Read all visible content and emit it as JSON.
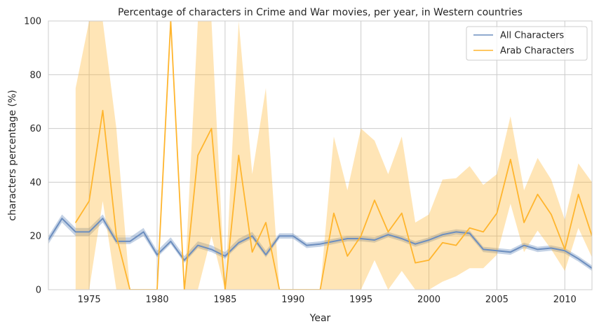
{
  "chart_data": {
    "type": "line",
    "title": "Percentage of characters in Crime and War movies, per year, in Western countries",
    "xlabel": "Year",
    "ylabel": "characters percentage (%)",
    "xlim": [
      1972,
      2012
    ],
    "ylim": [
      0,
      100
    ],
    "xticks": [
      1975,
      1980,
      1985,
      1990,
      1995,
      2000,
      2005,
      2010
    ],
    "yticks": [
      0,
      20,
      40,
      60,
      80,
      100
    ],
    "grid": true,
    "legend_position": "top-right",
    "series": [
      {
        "name": "All Characters",
        "color": "#6c8ebf",
        "x": [
          1972,
          1973,
          1974,
          1975,
          1976,
          1977,
          1978,
          1979,
          1980,
          1981,
          1982,
          1983,
          1984,
          1985,
          1986,
          1987,
          1988,
          1989,
          1990,
          1991,
          1992,
          1993,
          1994,
          1995,
          1996,
          1997,
          1998,
          1999,
          2000,
          2001,
          2002,
          2003,
          2004,
          2005,
          2006,
          2007,
          2008,
          2009,
          2010,
          2011,
          2012
        ],
        "y": [
          18.5,
          26.5,
          21.5,
          21.5,
          26.5,
          18,
          18,
          21.5,
          13,
          18,
          11,
          16.5,
          15,
          12.5,
          17.5,
          20,
          13,
          20,
          20,
          16.5,
          17,
          18,
          19,
          19,
          18.5,
          20.5,
          19,
          17,
          18.5,
          20.5,
          21.5,
          21,
          15,
          14.5,
          14,
          16.5,
          15,
          15.5,
          14.5,
          11.5,
          8
        ],
        "ci_low": [
          17,
          25,
          20,
          20,
          25,
          17,
          17,
          20,
          12,
          17,
          10,
          15.5,
          14,
          11.5,
          16.5,
          19,
          12,
          19,
          19,
          15.5,
          16,
          17,
          18,
          18,
          17.5,
          19.5,
          18,
          16,
          17.5,
          19.5,
          20.5,
          20,
          14,
          13.5,
          13,
          15.5,
          14,
          14.5,
          13.5,
          10.5,
          7
        ],
        "ci_high": [
          20,
          28,
          23,
          23,
          28,
          19.5,
          19.5,
          23,
          14.5,
          19.5,
          12.5,
          18,
          16.5,
          14,
          19,
          21.5,
          14.5,
          21,
          21,
          17.5,
          18,
          19,
          20,
          20,
          19.5,
          21.5,
          20,
          18,
          19.5,
          21.5,
          22.5,
          22,
          16,
          15.5,
          15,
          17.5,
          16,
          16.5,
          15.5,
          12.5,
          9
        ]
      },
      {
        "name": "Arab Characters",
        "color": "#ffb52e",
        "x": [
          1974,
          1975,
          1976,
          1977,
          1978,
          1979,
          1980,
          1981,
          1982,
          1983,
          1984,
          1985,
          1986,
          1987,
          1988,
          1989,
          1990,
          1991,
          1992,
          1993,
          1994,
          1995,
          1996,
          1997,
          1998,
          1999,
          2000,
          2001,
          2002,
          2003,
          2004,
          2005,
          2006,
          2007,
          2008,
          2009,
          2010,
          2011,
          2012
        ],
        "y": [
          25,
          33,
          66.7,
          20,
          0,
          0,
          0,
          100,
          0,
          50,
          60,
          0,
          50,
          14,
          25,
          0,
          0,
          0,
          0,
          28.5,
          12.5,
          20,
          33.3,
          21.5,
          28.5,
          10,
          11,
          17.5,
          16.5,
          23,
          21.5,
          28.5,
          48.5,
          25,
          35.5,
          28,
          15,
          35.5,
          20
        ],
        "ci_low": [
          0,
          0,
          33,
          0,
          0,
          0,
          0,
          100,
          0,
          0,
          20,
          0,
          0,
          0,
          0,
          0,
          0,
          0,
          0,
          0,
          0,
          0,
          11,
          0,
          7,
          0,
          0,
          3,
          5,
          8,
          8,
          13,
          32,
          14,
          22,
          15,
          7,
          23,
          12
        ],
        "ci_high": [
          75,
          100,
          100,
          60,
          0,
          0,
          0,
          100,
          0,
          100,
          100,
          0,
          100,
          43,
          75,
          0,
          0,
          0,
          0,
          57,
          37,
          60,
          55.5,
          43,
          57,
          25,
          28,
          41,
          41.5,
          46,
          39,
          43,
          64.5,
          37,
          49,
          41,
          26,
          47,
          40
        ]
      }
    ]
  }
}
